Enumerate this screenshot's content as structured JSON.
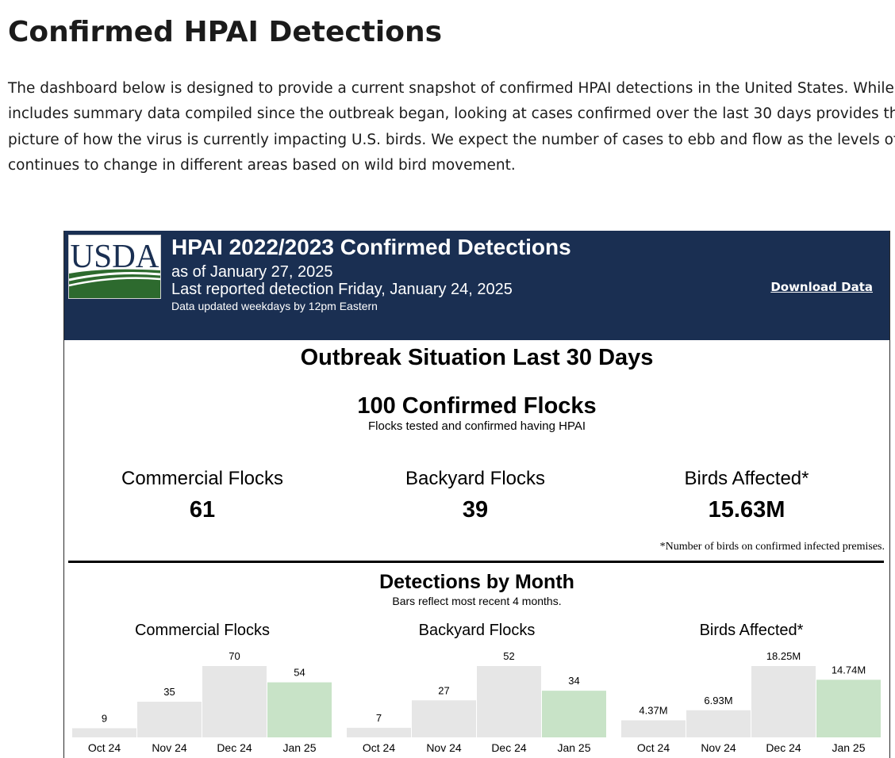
{
  "page": {
    "title": "Confirmed HPAI Detections",
    "intro_lines": [
      "The dashboard below is designed to provide a current snapshot of confirmed HPAI detections in the United States. While",
      "includes summary data compiled since the outbreak began, looking at cases confirmed over the last 30 days provides the",
      "picture of how the virus is currently impacting U.S. birds. We expect the number of cases to ebb and flow as the levels of v",
      "continues to change in different areas based on wild bird movement."
    ]
  },
  "dashboard": {
    "logo_text": "USDA",
    "title": "HPAI 2022/2023 Confirmed Detections",
    "as_of": "as of January 27, 2025",
    "last_detection": "Last reported detection Friday, January 24, 2025",
    "update_note": "Data updated weekdays by 12pm Eastern",
    "download_label": "Download Data",
    "section_title": "Outbreak Situation Last 30 Days",
    "total_flocks": "100 Confirmed Flocks",
    "total_sub": "Flocks tested and confirmed having HPAI",
    "kpis": [
      {
        "label": "Commercial Flocks",
        "value": "61"
      },
      {
        "label": "Backyard Flocks",
        "value": "39"
      },
      {
        "label": "Birds Affected*",
        "value": "15.63M"
      }
    ],
    "footnote": "*Number of birds on confirmed infected premises.",
    "monthly_title": "Detections by Month",
    "monthly_sub": "Bars reflect most recent 4 months."
  },
  "colors": {
    "header_bg": "#1a2f52",
    "bar_past": "#e6e6e6",
    "bar_current": "#c8e3c7",
    "usda_green": "#2d6a2e",
    "usda_navy": "#1a2f52"
  },
  "chart_data": [
    {
      "type": "bar",
      "title": "Commercial Flocks",
      "categories": [
        "Oct 24",
        "Nov 24",
        "Dec 24",
        "Jan 25"
      ],
      "values": [
        9,
        35,
        70,
        54
      ],
      "labels": [
        "9",
        "35",
        "70",
        "54"
      ],
      "highlight_index": 3
    },
    {
      "type": "bar",
      "title": "Backyard Flocks",
      "categories": [
        "Oct 24",
        "Nov 24",
        "Dec 24",
        "Jan 25"
      ],
      "values": [
        7,
        27,
        52,
        34
      ],
      "labels": [
        "7",
        "27",
        "52",
        "34"
      ],
      "highlight_index": 3
    },
    {
      "type": "bar",
      "title": "Birds Affected*",
      "categories": [
        "Oct 24",
        "Nov 24",
        "Dec 24",
        "Jan 25"
      ],
      "values": [
        4.37,
        6.93,
        18.25,
        14.74
      ],
      "labels": [
        "4.37M",
        "6.93M",
        "18.25M",
        "14.74M"
      ],
      "highlight_index": 3
    }
  ]
}
